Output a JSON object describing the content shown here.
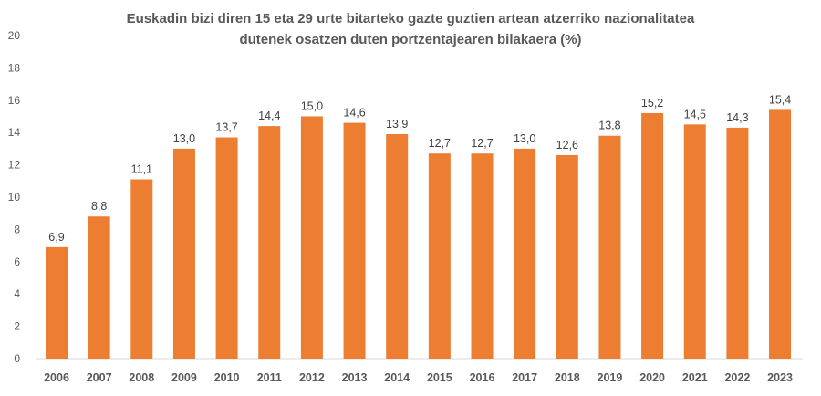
{
  "chart_data": {
    "type": "bar",
    "title_line1": "Euskadin bizi diren 15 eta 29 urte bitarteko gazte guztien artean atzerriko nazionalitatea",
    "title_line2": "dutenek osatzen duten portzentajearen bilakaera (%)",
    "categories": [
      "2006",
      "2007",
      "2008",
      "2009",
      "2010",
      "2011",
      "2012",
      "2013",
      "2014",
      "2015",
      "2016",
      "2017",
      "2018",
      "2019",
      "2020",
      "2021",
      "2022",
      "2023"
    ],
    "values": [
      6.9,
      8.8,
      11.1,
      13.0,
      13.7,
      14.4,
      15.0,
      14.6,
      13.9,
      12.7,
      12.7,
      13.0,
      12.6,
      13.8,
      15.2,
      14.5,
      14.3,
      15.4
    ],
    "data_labels": [
      "6,9",
      "8,8",
      "11,1",
      "13,0",
      "13,7",
      "14,4",
      "15,0",
      "14,6",
      "13,9",
      "12,7",
      "12,7",
      "13,0",
      "12,6",
      "13,8",
      "15,2",
      "14,5",
      "14,3",
      "15,4"
    ],
    "yticks": [
      0,
      2,
      4,
      6,
      8,
      10,
      12,
      14,
      16,
      18,
      20
    ],
    "ylim": [
      0,
      20
    ],
    "grid": false,
    "bar_color": "#ED7D31"
  }
}
